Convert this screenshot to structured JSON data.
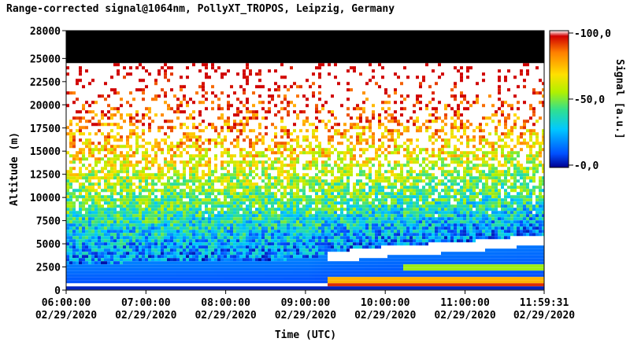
{
  "chart_data": {
    "type": "heatmap",
    "title": "Range-corrected signal@1064nm, PollyXT_TROPOS, Leipzig, Germany",
    "xlabel": "Time (UTC)",
    "ylabel": "Altitude (m)",
    "x_range": [
      "2020-02-29 06:00:00",
      "2020-02-29 11:59:31"
    ],
    "ylim": [
      0,
      28000
    ],
    "y_ticks": [
      {
        "value": 0,
        "label": "0"
      },
      {
        "value": 2500,
        "label": "2500"
      },
      {
        "value": 5000,
        "label": "5000"
      },
      {
        "value": 7500,
        "label": "7500"
      },
      {
        "value": 10000,
        "label": "10000"
      },
      {
        "value": 12500,
        "label": "12500"
      },
      {
        "value": 15000,
        "label": "15000"
      },
      {
        "value": 17500,
        "label": "17500"
      },
      {
        "value": 20000,
        "label": "20000"
      },
      {
        "value": 22500,
        "label": "22500"
      },
      {
        "value": 25000,
        "label": "25000"
      },
      {
        "value": 28000,
        "label": "28000"
      }
    ],
    "x_ticks": [
      {
        "hour": 6.0,
        "time": "06:00:00",
        "date": "02/29/2020"
      },
      {
        "hour": 7.0,
        "time": "07:00:00",
        "date": "02/29/2020"
      },
      {
        "hour": 8.0,
        "time": "08:00:00",
        "date": "02/29/2020"
      },
      {
        "hour": 9.0,
        "time": "09:00:00",
        "date": "02/29/2020"
      },
      {
        "hour": 10.0,
        "time": "10:00:00",
        "date": "02/29/2020"
      },
      {
        "hour": 11.0,
        "time": "11:00:00",
        "date": "02/29/2020"
      },
      {
        "hour": 11.9919,
        "time": "11:59:31",
        "date": "02/29/2020"
      }
    ],
    "colorbar": {
      "label": "Signal [a.u.]",
      "min": 0,
      "max": 100,
      "ticks": [
        {
          "value": 0,
          "label": "0,0"
        },
        {
          "value": 50,
          "label": "50,0"
        },
        {
          "value": 100,
          "label": "100,0"
        }
      ],
      "colormap": [
        "#000090",
        "#0050ff",
        "#00c8ff",
        "#30e090",
        "#b0f000",
        "#ffe000",
        "#ff8000",
        "#d00000"
      ]
    },
    "features": {
      "no_data_above_m": 24500,
      "lowest_layer_m": [
        700,
        1000
      ],
      "aerosol_layer_top_m": {
        "t06": 3000,
        "t09": 3500,
        "t10": 4700,
        "t11": 5200,
        "t12": 6000
      },
      "after_0915_cloud_base_m": [
        3200,
        5800
      ]
    }
  }
}
